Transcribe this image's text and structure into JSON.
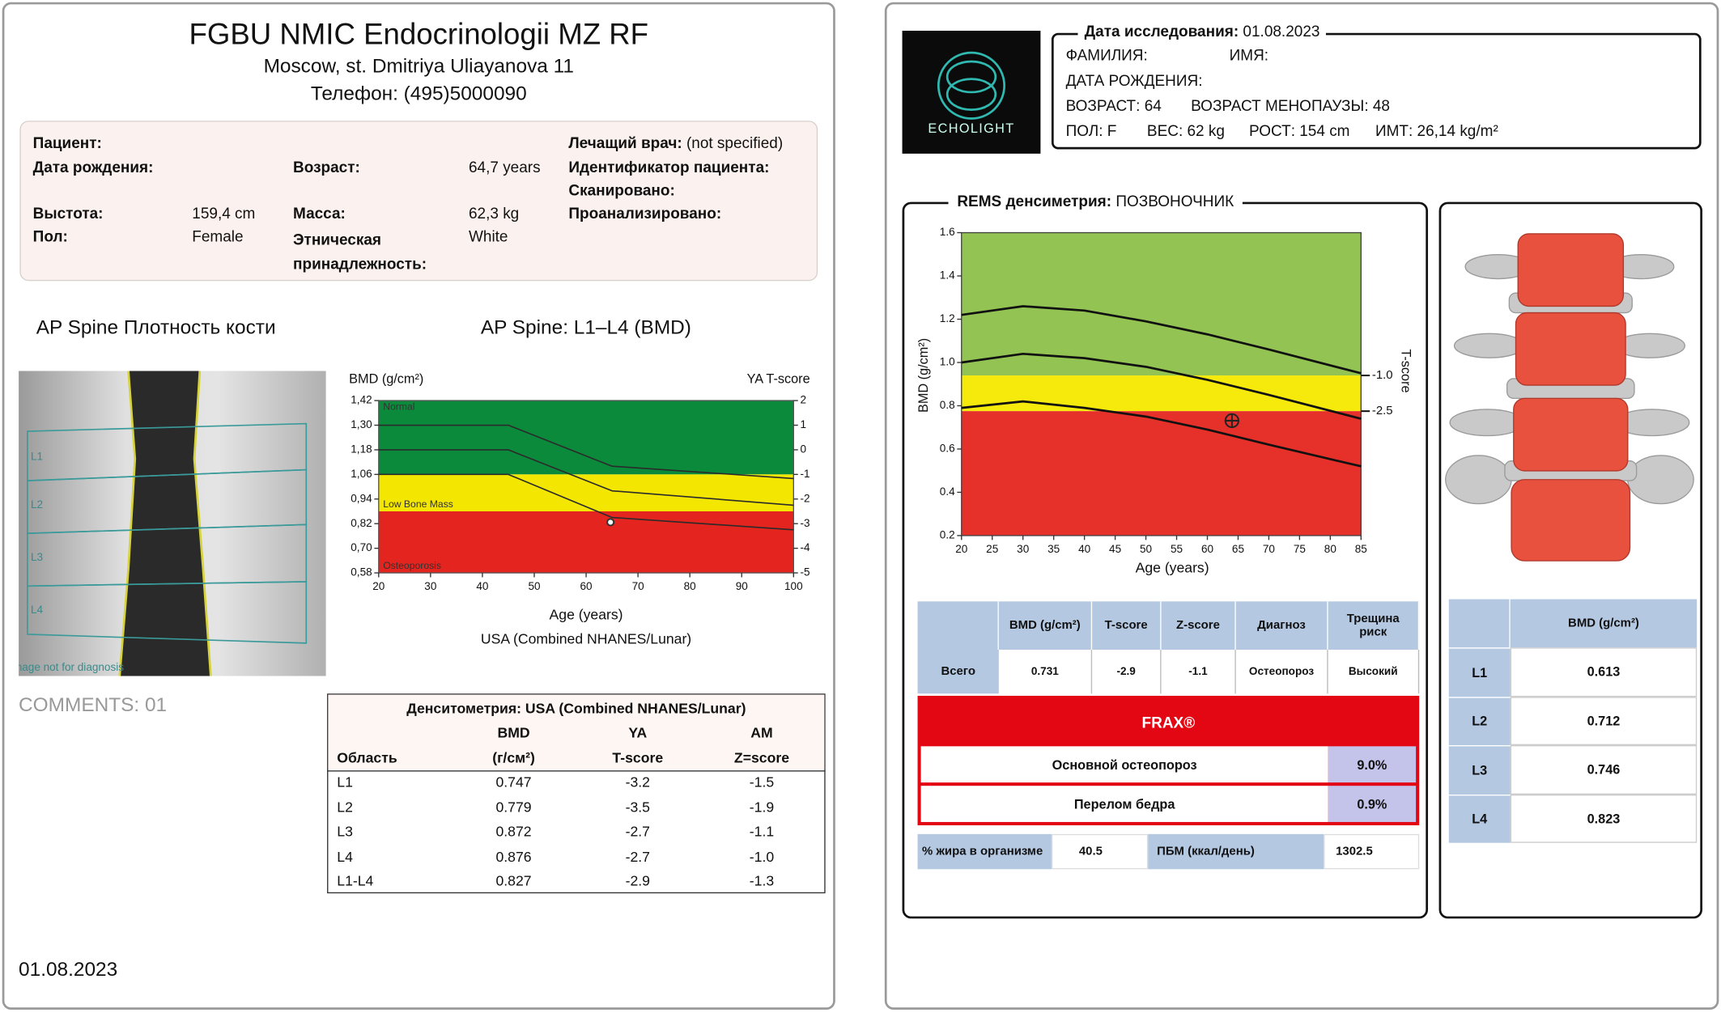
{
  "left": {
    "header": {
      "title": "FGBU NMIC Endocrinologii MZ RF",
      "address": "Moscow, st. Dmitriya Uliayanova 11",
      "phone": "Телефон: (495)5000090"
    },
    "patient": {
      "patient_label": "Пациент:",
      "dob_label": "Дата рождения:",
      "age_label": "Возраст:",
      "age_value": "64,7 years",
      "doctor_label": "Лечащий врач:",
      "doctor_value": "(not specified)",
      "patient_id_label": "Идентификатор пациента:",
      "scanned_label": "Сканировано:",
      "analyzed_label": "Проанализировано:",
      "height_label": "Выстота:",
      "height_value": "159,4 cm",
      "mass_label": "Масса:",
      "mass_value": "62,3 kg",
      "sex_label": "Пол:",
      "sex_value": "Female",
      "ethnicity_label": "Этническая принадлежность:",
      "ethnicity_value": "White"
    },
    "image_title": "AP Spine Плотность кости",
    "chart_heading": "AP Spine: L1–L4 (BMD)",
    "spine_labels": [
      "L1",
      "L2",
      "L3",
      "L4"
    ],
    "watermark": "Image not for diagnosis",
    "comments": "COMMENTS: 01",
    "date": "01.08.2023",
    "table": {
      "title": "Денситометрия: USA (Combined NHANES/Lunar)",
      "header_top": [
        "BMD",
        "YA",
        "AM"
      ],
      "header": [
        "Область",
        "(г/см²)",
        "T-score",
        "Z=score"
      ],
      "rows": [
        [
          "L1",
          "0.747",
          "-3.2",
          "-1.5"
        ],
        [
          "L2",
          "0.779",
          "-3.5",
          "-1.9"
        ],
        [
          "L3",
          "0.872",
          "-2.7",
          "-1.1"
        ],
        [
          "L4",
          "0.876",
          "-2.7",
          "-1.0"
        ],
        [
          "L1-L4",
          "0.827",
          "-2.9",
          "-1.3"
        ]
      ]
    }
  },
  "right": {
    "logo": "ECHOLIGHT",
    "exam": {
      "date_label": "Дата исследования:",
      "date": "01.08.2023",
      "surname_label": "ФАМИЛИЯ:",
      "name_label": "ИМЯ:",
      "dob_label": "ДАТА РОЖДЕНИЯ:",
      "age": "ВОЗРАСТ: 64",
      "menopause": "ВОЗРАСТ МЕНОПАУЗЫ: 48",
      "sex": "ПОЛ: F",
      "weight": "ВЕС: 62 kg",
      "height": "РОСТ: 154 cm",
      "bmi": "ИМТ: 26,14 kg/m²"
    },
    "section_title_bold": "REMS денсиметрия:",
    "section_title": "ПОЗВОНОЧНИК",
    "summary_table": {
      "header": [
        "BMD (g/cm²)",
        "T-score",
        "Z-score",
        "Диагноз",
        "Трещина риск"
      ],
      "row_label": "Всего",
      "row": [
        "0.731",
        "-2.9",
        "-1.1",
        "Остеопороз",
        "Высокий"
      ]
    },
    "frax": {
      "title": "FRAX®",
      "rows": [
        [
          "Основной остеопороз",
          "9.0%"
        ],
        [
          "Перелом бедра",
          "0.9%"
        ]
      ]
    },
    "body": {
      "fat_label": "% жира в организме",
      "fat": "40.5",
      "bmr_label": "ПБМ (ккал/день)",
      "bmr": "1302.5"
    },
    "vertebra_table": {
      "header": "BMD (g/cm²)",
      "rows": [
        [
          "L1",
          "0.613"
        ],
        [
          "L2",
          "0.712"
        ],
        [
          "L3",
          "0.746"
        ],
        [
          "L4",
          "0.823"
        ]
      ]
    }
  },
  "chart_data": [
    {
      "type": "line",
      "y_label": "BMD (g/cm²)",
      "y2_label": "YA T-score",
      "x_label": "Age (years)",
      "subtitle": "USA (Combined NHANES/Lunar)",
      "xlim": [
        20,
        100
      ],
      "xticks": [
        20,
        30,
        40,
        50,
        60,
        70,
        80,
        90,
        100
      ],
      "ylim": [
        0.58,
        1.42
      ],
      "yticks": [
        {
          "value": 0.58,
          "label": "0,58"
        },
        {
          "value": 0.7,
          "label": "0,70"
        },
        {
          "value": 0.82,
          "label": "0,82"
        },
        {
          "value": 0.94,
          "label": "0,94"
        },
        {
          "value": 1.06,
          "label": "1,06"
        },
        {
          "value": 1.18,
          "label": "1,18"
        },
        {
          "value": 1.3,
          "label": "1,30"
        },
        {
          "value": 1.42,
          "label": "1,42"
        }
      ],
      "y2lim": [
        -5,
        2
      ],
      "y2ticks": [
        -5,
        -4,
        -3,
        -2,
        -1,
        0,
        1,
        2
      ],
      "zones": [
        {
          "name": "Normal",
          "color": "#0b8a3c",
          "from": 1.06,
          "to": 1.42
        },
        {
          "name": "Low Bone Mass",
          "color": "#f3e600",
          "from": 0.88,
          "to": 1.06
        },
        {
          "name": "Osteoporosis",
          "color": "#e3241f",
          "from": 0.58,
          "to": 0.88
        }
      ],
      "x": [
        20,
        45,
        65,
        100
      ],
      "series": [
        {
          "color": "#2b2b2b",
          "values": [
            1.3,
            1.3,
            1.1,
            1.04
          ]
        },
        {
          "color": "#2b2b2b",
          "values": [
            1.18,
            1.18,
            0.98,
            0.91
          ]
        },
        {
          "color": "#2b2b2b",
          "values": [
            1.06,
            1.06,
            0.85,
            0.79
          ]
        }
      ],
      "point": {
        "x": 64.7,
        "value": 0.827,
        "color": "#333333"
      }
    },
    {
      "type": "line",
      "y_label": "BMD (g/cm²)",
      "y2_label": "T-score",
      "x_label": "Age (years)",
      "xlim": [
        20,
        85
      ],
      "xticks": [
        20,
        25,
        30,
        35,
        40,
        45,
        50,
        55,
        60,
        65,
        70,
        75,
        80,
        85
      ],
      "ylim": [
        0.2,
        1.6
      ],
      "yticks": [
        0.2,
        0.4,
        0.6,
        0.8,
        {
          "value": 1.0,
          "label": "1.0"
        },
        1.2,
        1.4,
        1.6
      ],
      "tscore_marks": [
        {
          "value": 0.94,
          "label": "-1.0"
        },
        {
          "value": 0.775,
          "label": "-2.5"
        }
      ],
      "zones": [
        {
          "color": "#92c353",
          "from": 0.94,
          "to": 1.6
        },
        {
          "color": "#f5ea0c",
          "from": 0.775,
          "to": 0.94
        },
        {
          "color": "#e6302a",
          "from": 0.2,
          "to": 0.775
        }
      ],
      "x": [
        20,
        30,
        40,
        50,
        60,
        70,
        85
      ],
      "series": [
        {
          "color": "#111111",
          "values": [
            1.22,
            1.26,
            1.24,
            1.19,
            1.13,
            1.06,
            0.95
          ]
        },
        {
          "color": "#111111",
          "values": [
            1.0,
            1.04,
            1.02,
            0.98,
            0.92,
            0.85,
            0.74
          ]
        },
        {
          "color": "#111111",
          "values": [
            0.79,
            0.82,
            0.79,
            0.75,
            0.69,
            0.62,
            0.52
          ]
        }
      ],
      "point": {
        "x": 64,
        "value": 0.731,
        "color": "#222222"
      }
    }
  ]
}
